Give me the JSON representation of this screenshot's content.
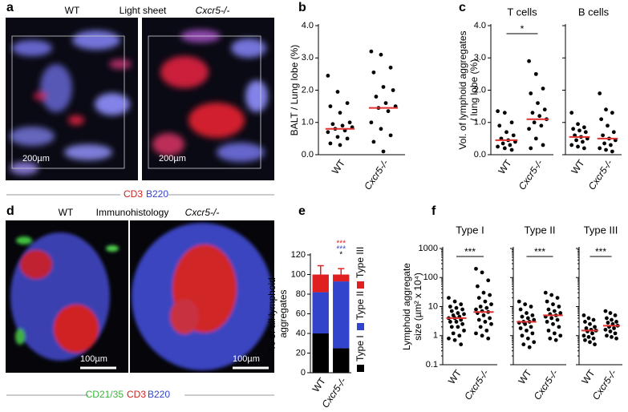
{
  "figure": {
    "panel_labels": [
      "a",
      "b",
      "c",
      "d",
      "e",
      "f"
    ],
    "a": {
      "left": "WT",
      "center": "Light sheet",
      "right": "Cxcr5-/-",
      "scale_left": "200µm",
      "scale_right": "200µm",
      "stain": [
        "CD3",
        "B220"
      ]
    },
    "d": {
      "left": "WT",
      "center": "Immunohistology",
      "right": "Cxcr5-/-",
      "scale_left": "100µm",
      "scale_right": "100µm",
      "stain": [
        "CD21/35",
        "CD3",
        "B220"
      ]
    }
  },
  "chart_data": [
    {
      "type": "strip",
      "ylabel": [
        "BALT / Lung lobe (%)"
      ],
      "categories": [
        "WT",
        "Cxcr5-/-"
      ],
      "color": "#000000",
      "median_color": "#e03030",
      "values": [
        [
          2.45,
          1.95,
          1.6,
          1.5,
          1.3,
          1.0,
          0.95,
          0.9,
          0.85,
          0.8,
          0.75,
          0.7,
          0.55,
          0.5,
          0.35,
          0.3
        ],
        [
          3.2,
          3.1,
          2.7,
          2.55,
          2.1,
          2.0,
          1.8,
          1.6,
          1.5,
          1.45,
          1.35,
          1.0,
          0.8,
          0.6,
          0.4,
          0.1
        ]
      ],
      "medians": [
        0.8,
        1.45
      ],
      "ylim": [
        0,
        4
      ],
      "yticks": [
        {
          "value": 0,
          "label": "0.0"
        },
        {
          "value": 1,
          "label": "1.0"
        },
        {
          "value": 2,
          "label": "2.0"
        },
        {
          "value": 3,
          "label": "3.0"
        },
        {
          "value": 4,
          "label": "4.0"
        }
      ],
      "tick_labels": true
    },
    {
      "type": "strip",
      "title": "T cells",
      "ylabel": [
        "Vol. of lymphoid aggregates",
        "/ lung lobe (%)"
      ],
      "annotation": "*",
      "categories": [
        "WT",
        "Cxcr5-/-"
      ],
      "color": "#000000",
      "median_color": "#e03030",
      "values": [
        [
          1.35,
          1.3,
          1.0,
          0.9,
          0.7,
          0.6,
          0.5,
          0.45,
          0.4,
          0.35,
          0.3,
          0.25,
          0.2,
          0.15
        ],
        [
          2.9,
          2.5,
          2.05,
          1.9,
          1.6,
          1.4,
          1.3,
          1.2,
          1.1,
          1.0,
          0.9,
          0.8,
          0.5,
          0.3,
          0.2
        ]
      ],
      "medians": [
        0.45,
        1.1
      ],
      "ylim": [
        0,
        4
      ],
      "yticks": [
        {
          "value": 0,
          "label": "0.0"
        },
        {
          "value": 1,
          "label": "1.0"
        },
        {
          "value": 2,
          "label": "2.0"
        },
        {
          "value": 3,
          "label": "3.0"
        },
        {
          "value": 4,
          "label": "4.0"
        }
      ],
      "tick_labels": true
    },
    {
      "type": "strip",
      "title": "B cells",
      "categories": [
        "WT",
        "Cxcr5-/-"
      ],
      "color": "#000000",
      "median_color": "#e03030",
      "values": [
        [
          1.3,
          0.95,
          0.85,
          0.8,
          0.75,
          0.7,
          0.6,
          0.55,
          0.5,
          0.45,
          0.4,
          0.3,
          0.25,
          0.2
        ],
        [
          1.9,
          1.4,
          1.3,
          1.1,
          0.9,
          0.7,
          0.6,
          0.5,
          0.45,
          0.35,
          0.3,
          0.2,
          0.15,
          0.1
        ]
      ],
      "medians": [
        0.55,
        0.5
      ],
      "ylim": [
        0,
        4
      ],
      "yticks": [
        0,
        1,
        2,
        3,
        4
      ],
      "tick_labels": false
    },
    {
      "type": "stacked_bar",
      "ylabel": [
        "% of all lymphoid",
        "aggregates"
      ],
      "categories": [
        "WT",
        "Cxcr5-/-"
      ],
      "series": [
        {
          "name": "Type I",
          "color": "#000000",
          "values": [
            40,
            25
          ],
          "errors": [
            15,
            8
          ]
        },
        {
          "name": "Type II",
          "color": "#3344cc",
          "values": [
            42,
            68
          ],
          "errors": [
            8,
            5
          ]
        },
        {
          "name": "Type III",
          "color": "#e02020",
          "values": [
            18,
            7
          ],
          "errors": [
            9,
            6
          ]
        }
      ],
      "annotations": [
        {
          "text": "***",
          "color": "#e02020"
        },
        {
          "text": "***",
          "color": "#3344cc"
        },
        {
          "text": "*",
          "color": "#000000"
        }
      ],
      "ylim": [
        0,
        120
      ],
      "yticks": [
        0,
        20,
        40,
        60,
        80,
        100,
        120
      ]
    },
    {
      "type": "strip",
      "title": "Type I",
      "ylabel": [
        "Lymphoid aggregate",
        "size (µm² x 10⁴)"
      ],
      "annotation": "***",
      "log": true,
      "categories": [
        "WT",
        "Cxcr5-/-"
      ],
      "color": "#000000",
      "median_color": "#e03030",
      "values": [
        [
          20,
          15,
          12,
          10,
          9,
          8,
          7,
          6,
          5.5,
          5,
          4.5,
          4,
          4,
          3.5,
          3,
          3,
          2.5,
          2,
          2,
          1.5,
          1.2,
          1,
          0.8,
          0.7,
          0.5
        ],
        [
          200,
          150,
          80,
          50,
          30,
          25,
          20,
          15,
          12,
          10,
          9,
          8,
          7,
          6.5,
          6,
          5,
          4,
          3.5,
          3,
          2.5,
          2,
          1.5,
          1.2,
          1,
          0.8
        ]
      ],
      "medians": [
        4,
        6.5
      ],
      "ylim": [
        0.1,
        1000
      ],
      "yticks": [
        0.1,
        1,
        10,
        100,
        1000
      ],
      "tick_labels": true
    },
    {
      "type": "strip",
      "title": "Type II",
      "annotation": "***",
      "log": true,
      "categories": [
        "WT",
        "Cxcr5-/-"
      ],
      "color": "#000000",
      "median_color": "#e03030",
      "values": [
        [
          15,
          12,
          10,
          8,
          6,
          5,
          4.5,
          4,
          3.5,
          3,
          3,
          2.8,
          2.5,
          2,
          1.8,
          1.5,
          1.2,
          1,
          0.8,
          0.6,
          0.5,
          0.4
        ],
        [
          30,
          25,
          20,
          15,
          12,
          10,
          8,
          7,
          6,
          5.5,
          5,
          4.5,
          4,
          3.5,
          3,
          2.5,
          2,
          1.5,
          1.2,
          1,
          0.8,
          0.7
        ]
      ],
      "medians": [
        3,
        5
      ],
      "ylim": [
        0.1,
        1000
      ],
      "yticks": [
        0.1,
        1,
        10,
        100,
        1000
      ],
      "tick_labels": false
    },
    {
      "type": "strip",
      "title": "Type III",
      "annotation": "***",
      "log": true,
      "categories": [
        "WT",
        "Cxcr5-/-"
      ],
      "color": "#000000",
      "median_color": "#e03030",
      "values": [
        [
          5,
          4,
          3.5,
          3,
          2.5,
          2,
          1.8,
          1.6,
          1.5,
          1.4,
          1.2,
          1,
          0.9,
          0.8,
          0.7,
          0.6,
          0.5
        ],
        [
          7,
          6,
          5,
          4,
          3.5,
          3,
          2.8,
          2.5,
          2.2,
          2,
          1.8,
          1.6,
          1.4,
          1.2,
          1,
          0.9,
          0.8
        ]
      ],
      "medians": [
        1.5,
        2.2
      ],
      "ylim": [
        0.1,
        1000
      ],
      "yticks": [
        0.1,
        1,
        10,
        100,
        1000
      ],
      "tick_labels": false
    }
  ]
}
